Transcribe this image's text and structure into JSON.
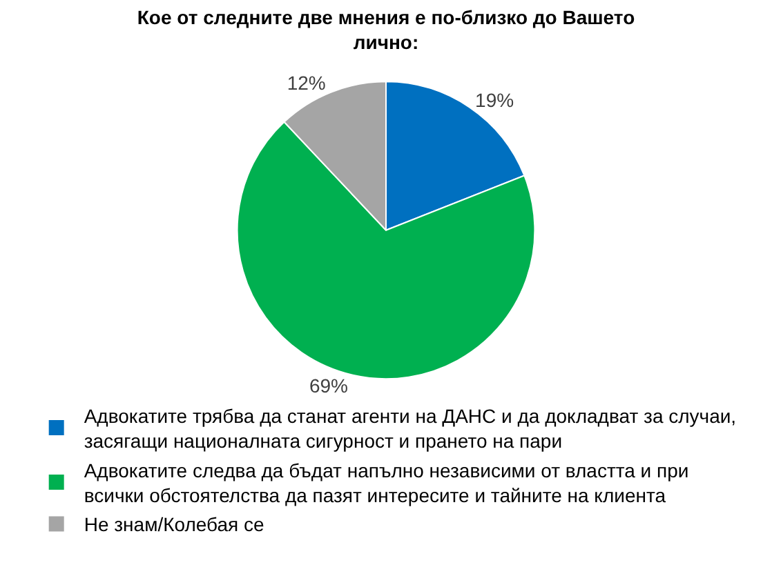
{
  "chart_data": {
    "type": "pie",
    "title": "Кое от следните две мнения е по-близко до Вашето лично:",
    "categories": [
      "Адвокатите трябва да станат агенти на ДАНС и да докладват за случаи, засягащи националната сигурност и прането на пари",
      "Адвокатите следва да бъдат напълно независими от властта и при всички обстоятелства да пазят интересите и тайните на клиента",
      "Не знам/Колебая се"
    ],
    "values": [
      19,
      69,
      12
    ],
    "colors": [
      "#0070c0",
      "#00b050",
      "#a5a5a5"
    ],
    "value_labels": [
      "19%",
      "69%",
      "12%"
    ],
    "legend": "bottom"
  }
}
